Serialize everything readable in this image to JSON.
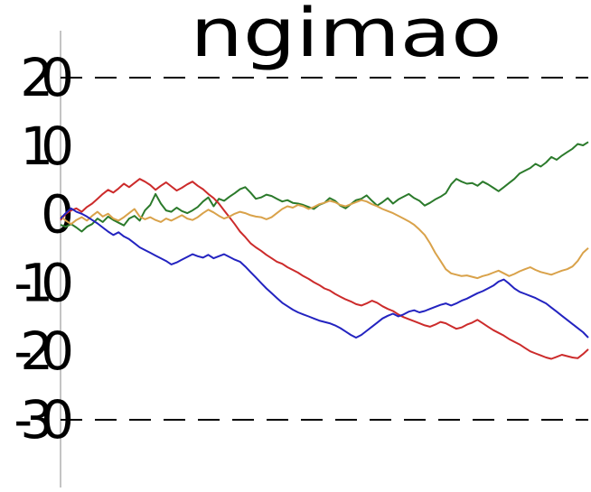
{
  "chart_data": {
    "type": "line",
    "title": "ngimao",
    "xlabel": "",
    "ylabel": "",
    "ylim": [
      -30,
      20
    ],
    "yticks": [
      20,
      10,
      0,
      -10,
      -20,
      -30
    ],
    "ytick_labels": [
      "20",
      "10",
      "0",
      "-10",
      "-20",
      "-30"
    ],
    "reference_lines": [
      20,
      -30
    ],
    "grid": false,
    "legend": "none",
    "x_points": 101,
    "series": [
      {
        "color": "#2b7a2b",
        "values": [
          -1.5,
          -1.8,
          -1.4,
          -1.9,
          -2.5,
          -1.8,
          -1.4,
          -0.6,
          -1.1,
          -0.3,
          -0.8,
          -1.2,
          -1.6,
          -0.6,
          -0.2,
          -0.9,
          0.6,
          1.4,
          3.0,
          1.6,
          0.6,
          0.4,
          1.0,
          0.5,
          0.2,
          0.6,
          1.1,
          1.9,
          2.5,
          1.2,
          2.3,
          2.0,
          2.6,
          3.1,
          3.7,
          4.0,
          3.2,
          2.3,
          2.5,
          2.9,
          2.7,
          2.3,
          1.9,
          2.1,
          1.7,
          1.6,
          1.4,
          1.1,
          0.8,
          1.4,
          1.7,
          2.4,
          2.0,
          1.3,
          0.9,
          1.5,
          2.1,
          2.3,
          2.8,
          2.0,
          1.3,
          1.8,
          2.4,
          1.6,
          2.2,
          2.6,
          3.0,
          2.4,
          2.0,
          1.3,
          1.7,
          2.2,
          2.6,
          3.1,
          4.4,
          5.2,
          4.8,
          4.5,
          4.6,
          4.2,
          4.8,
          4.4,
          3.9,
          3.4,
          4.0,
          4.6,
          5.2,
          6.0,
          6.4,
          6.8,
          7.4,
          7.0,
          7.6,
          8.4,
          8.0,
          8.6,
          9.1,
          9.6,
          10.3,
          10.1,
          10.6
        ]
      },
      {
        "color": "#cc2b2b",
        "values": [
          -0.8,
          0.1,
          0.6,
          0.9,
          0.4,
          1.1,
          1.6,
          2.3,
          3.0,
          3.6,
          3.2,
          3.8,
          4.5,
          4.0,
          4.6,
          5.2,
          4.8,
          4.3,
          3.6,
          4.2,
          4.7,
          4.1,
          3.5,
          3.9,
          4.4,
          4.8,
          4.2,
          3.7,
          3.0,
          2.4,
          1.6,
          0.6,
          -0.4,
          -1.4,
          -2.5,
          -3.3,
          -4.2,
          -4.8,
          -5.3,
          -5.9,
          -6.4,
          -6.9,
          -7.2,
          -7.7,
          -8.1,
          -8.5,
          -9.0,
          -9.4,
          -9.9,
          -10.3,
          -10.8,
          -11.1,
          -11.6,
          -12.0,
          -12.4,
          -12.7,
          -13.1,
          -13.3,
          -13.0,
          -12.6,
          -12.9,
          -13.4,
          -13.8,
          -14.1,
          -14.6,
          -15.0,
          -15.3,
          -15.6,
          -15.9,
          -16.2,
          -16.4,
          -16.1,
          -15.7,
          -15.9,
          -16.3,
          -16.7,
          -16.5,
          -16.1,
          -15.8,
          -15.4,
          -15.9,
          -16.4,
          -16.9,
          -17.3,
          -17.7,
          -18.2,
          -18.6,
          -19.0,
          -19.5,
          -20.0,
          -20.3,
          -20.6,
          -20.9,
          -21.1,
          -20.8,
          -20.5,
          -20.7,
          -20.9,
          -21.0,
          -20.4,
          -19.7
        ]
      },
      {
        "color": "#d9a24a",
        "values": [
          -0.2,
          -0.9,
          -1.4,
          -0.8,
          -0.4,
          -0.9,
          -0.2,
          0.4,
          -0.3,
          0.1,
          -0.6,
          -0.9,
          -0.4,
          0.2,
          0.8,
          -0.3,
          -0.7,
          -0.4,
          -0.8,
          -1.1,
          -0.6,
          -0.9,
          -0.5,
          -0.1,
          -0.6,
          -0.8,
          -0.4,
          0.2,
          0.7,
          0.3,
          -0.2,
          -0.6,
          -0.3,
          0.1,
          0.4,
          0.2,
          -0.1,
          -0.3,
          -0.4,
          -0.7,
          -0.4,
          0.2,
          0.8,
          1.2,
          1.0,
          1.4,
          1.2,
          0.8,
          1.1,
          1.5,
          1.7,
          2.0,
          1.8,
          1.4,
          1.2,
          1.5,
          1.8,
          2.1,
          1.9,
          1.5,
          1.2,
          0.8,
          0.5,
          0.2,
          -0.2,
          -0.6,
          -1.0,
          -1.5,
          -2.2,
          -3.0,
          -4.2,
          -5.6,
          -6.8,
          -8.0,
          -8.6,
          -8.8,
          -9.0,
          -8.9,
          -9.1,
          -9.3,
          -9.0,
          -8.8,
          -8.5,
          -8.2,
          -8.6,
          -9.0,
          -8.7,
          -8.3,
          -8.0,
          -7.7,
          -8.1,
          -8.4,
          -8.6,
          -8.8,
          -8.5,
          -8.2,
          -8.0,
          -7.6,
          -6.8,
          -5.6,
          -4.9
        ]
      },
      {
        "color": "#2323c0",
        "values": [
          -0.6,
          0.2,
          0.9,
          0.4,
          0.1,
          -0.3,
          -0.8,
          -1.3,
          -1.9,
          -2.5,
          -3.0,
          -2.6,
          -3.2,
          -3.6,
          -4.2,
          -4.8,
          -5.2,
          -5.6,
          -6.0,
          -6.4,
          -6.8,
          -7.3,
          -7.0,
          -6.6,
          -6.2,
          -5.8,
          -6.1,
          -6.3,
          -5.9,
          -6.4,
          -6.1,
          -5.8,
          -6.2,
          -6.6,
          -6.9,
          -7.6,
          -8.4,
          -9.2,
          -10.0,
          -10.8,
          -11.5,
          -12.2,
          -12.9,
          -13.4,
          -13.9,
          -14.3,
          -14.6,
          -14.9,
          -15.2,
          -15.5,
          -15.7,
          -15.9,
          -16.2,
          -16.6,
          -17.1,
          -17.6,
          -18.0,
          -17.6,
          -17.0,
          -16.4,
          -15.8,
          -15.2,
          -14.8,
          -14.5,
          -14.9,
          -14.6,
          -14.2,
          -14.0,
          -14.3,
          -14.1,
          -13.8,
          -13.5,
          -13.2,
          -13.0,
          -13.3,
          -13.0,
          -12.6,
          -12.3,
          -11.9,
          -11.5,
          -11.2,
          -10.8,
          -10.4,
          -9.8,
          -9.5,
          -10.1,
          -10.8,
          -11.3,
          -11.6,
          -11.9,
          -12.2,
          -12.6,
          -13.0,
          -13.6,
          -14.2,
          -14.8,
          -15.4,
          -16.0,
          -16.6,
          -17.2,
          -18.0
        ]
      }
    ]
  }
}
